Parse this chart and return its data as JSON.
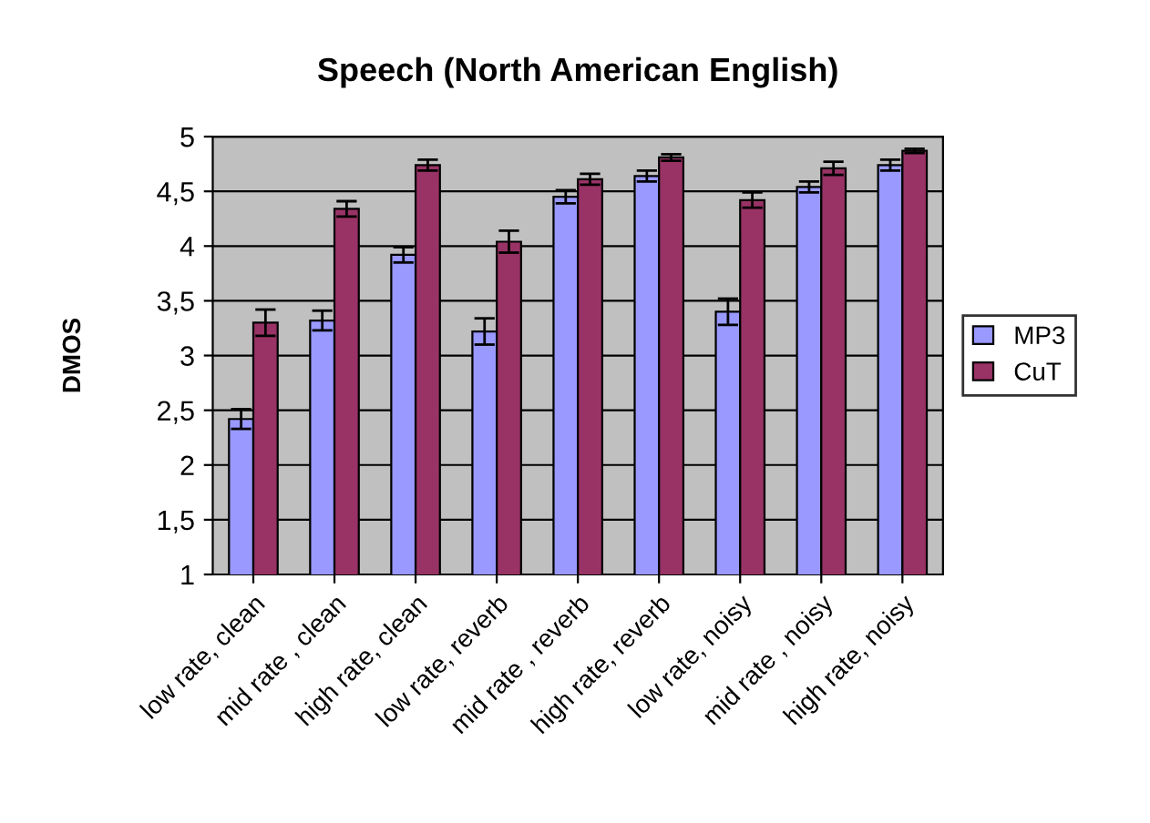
{
  "chart_data": {
    "type": "bar",
    "title": "Speech (North American English)",
    "ylabel": "DMOS",
    "categories": [
      "low rate, clean",
      "mid rate , clean",
      "high rate, clean",
      "low rate, reverb",
      "mid rate , reverb",
      "high rate, reverb",
      "low rate, noisy",
      "mid rate , noisy",
      "high rate, noisy"
    ],
    "series": [
      {
        "name": "MP3",
        "color": "#9999ff",
        "values": [
          2.42,
          3.32,
          3.92,
          3.22,
          4.45,
          4.64,
          3.4,
          4.54,
          4.74
        ],
        "errors": [
          0.09,
          0.09,
          0.07,
          0.12,
          0.06,
          0.05,
          0.12,
          0.05,
          0.05
        ]
      },
      {
        "name": "CuT",
        "color": "#993366",
        "values": [
          3.3,
          4.34,
          4.74,
          4.04,
          4.61,
          4.81,
          4.42,
          4.71,
          4.87
        ],
        "errors": [
          0.12,
          0.07,
          0.05,
          0.1,
          0.05,
          0.03,
          0.07,
          0.06,
          0.02
        ]
      }
    ],
    "ylim": [
      1,
      5
    ],
    "yticks": [
      1,
      {
        "value": 1.5,
        "label": "1,5"
      },
      2,
      {
        "value": 2.5,
        "label": "2,5"
      },
      3,
      {
        "value": 3.5,
        "label": "3,5"
      },
      4,
      {
        "value": 4.5,
        "label": "4,5"
      },
      5
    ],
    "grid": "y",
    "legend": "right"
  }
}
